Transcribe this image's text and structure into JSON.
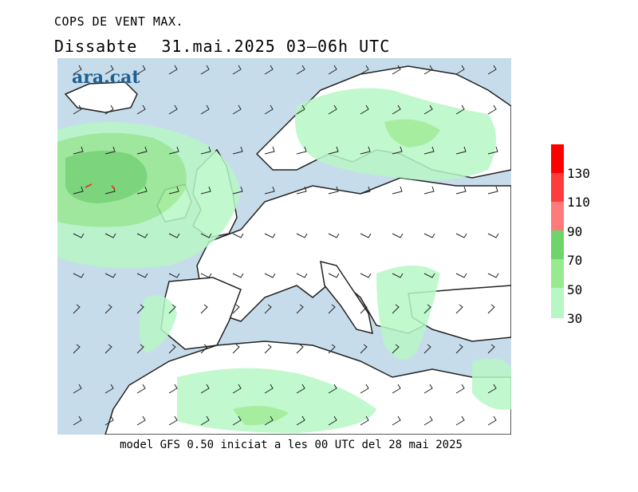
{
  "header": {
    "subtitle": "COPS DE VENT MAX.",
    "day": "Dissabte",
    "date_time": "31.mai.2025 03–06h UTC"
  },
  "brand": "ara.cat",
  "legend": {
    "labels": [
      "130",
      "110",
      "90",
      "70",
      "50",
      "30"
    ],
    "colors": [
      "#ff0000",
      "#ff3b3b",
      "#ff7b7b",
      "#6fd46a",
      "#98ea90",
      "#b7f7c6"
    ]
  },
  "footer": "model GFS 0.50 iniciat a les 00 UTC del 28 mai 2025",
  "colors": {
    "sea": "#c7dcea",
    "land": "#ffffff",
    "wind30": "#b7f7c6",
    "wind50": "#98ea90",
    "wind70": "#6fd46a"
  }
}
